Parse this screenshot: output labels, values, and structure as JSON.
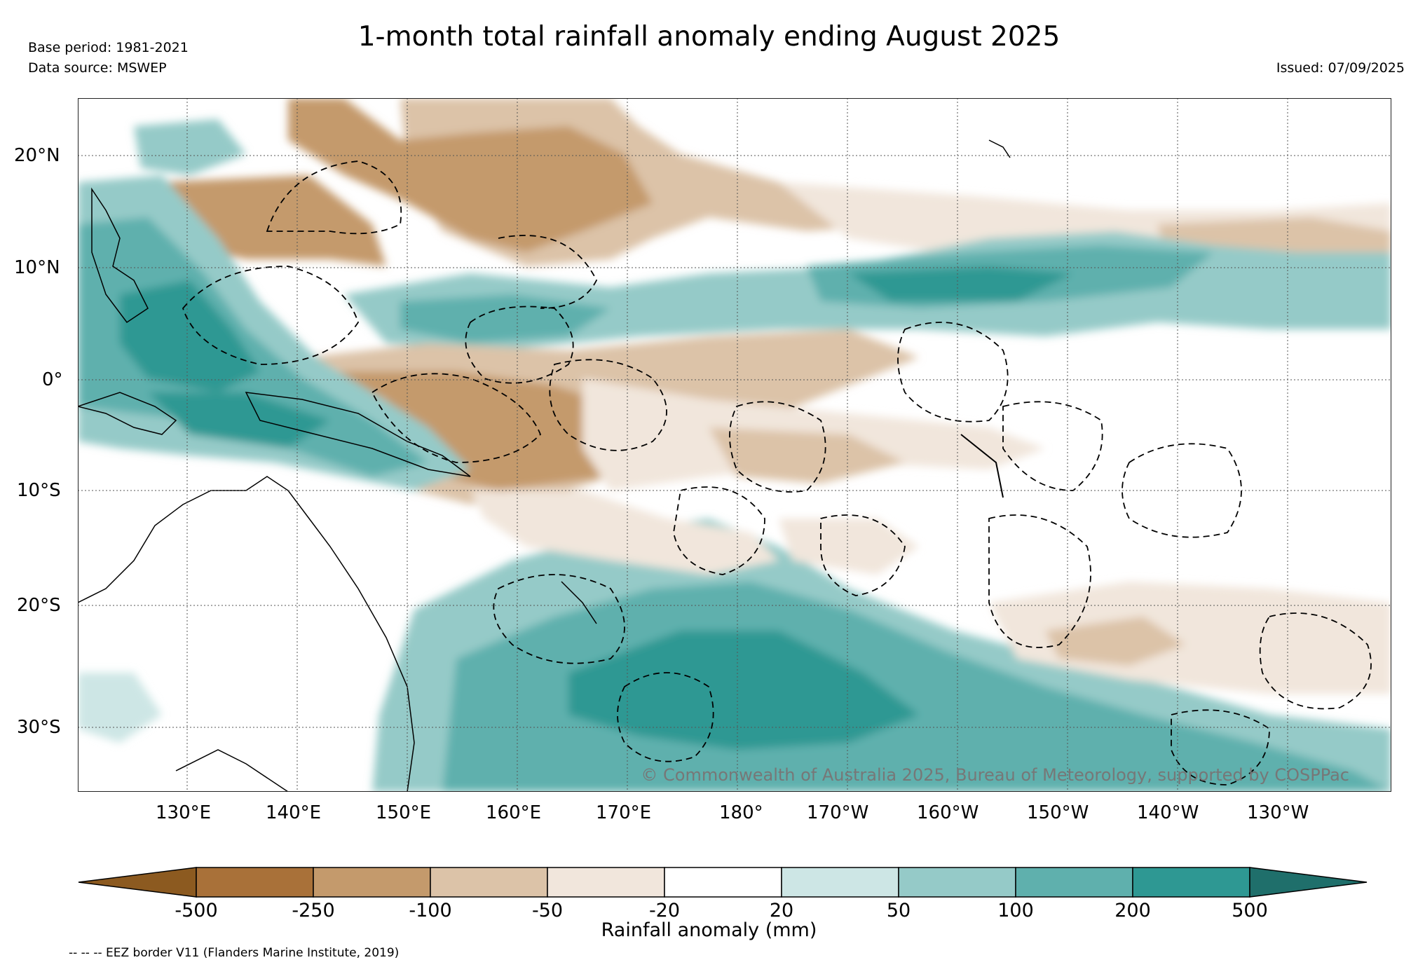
{
  "header": {
    "title": "1-month total rainfall anomaly ending August 2025",
    "base_period": "Base period: 1981-2021",
    "data_source": "Data source: MSWEP",
    "issued": "Issued: 07/09/2025"
  },
  "map": {
    "latitude_labels": [
      "20°N",
      "10°N",
      "0°",
      "10°S",
      "20°S",
      "30°S"
    ],
    "longitude_labels": [
      "130°E",
      "140°E",
      "150°E",
      "160°E",
      "170°E",
      "180°",
      "170°W",
      "160°W",
      "150°W",
      "140°W",
      "130°W"
    ],
    "copyright": "© Commonwealth of Australia 2025, Bureau of Meteorology, supported by COSPPac"
  },
  "colorbar": {
    "label": "Rainfall anomaly (mm)",
    "ticks": [
      "-500",
      "-250",
      "-100",
      "-50",
      "-20",
      "20",
      "50",
      "100",
      "200",
      "500"
    ],
    "colors": [
      "#8c5a20",
      "#a97139",
      "#c49a6c",
      "#dcc3a8",
      "#f1e6dc",
      "#ffffff",
      "#cde6e5",
      "#95cac8",
      "#5fb0ad",
      "#2e9893",
      "#1f6f6b"
    ],
    "thresholds_mm": [
      -500,
      -250,
      -100,
      -50,
      -20,
      20,
      50,
      100,
      200,
      500
    ]
  },
  "footnote": "-- -- -- EEZ border V11 (Flanders Marine Institute, 2019)"
}
